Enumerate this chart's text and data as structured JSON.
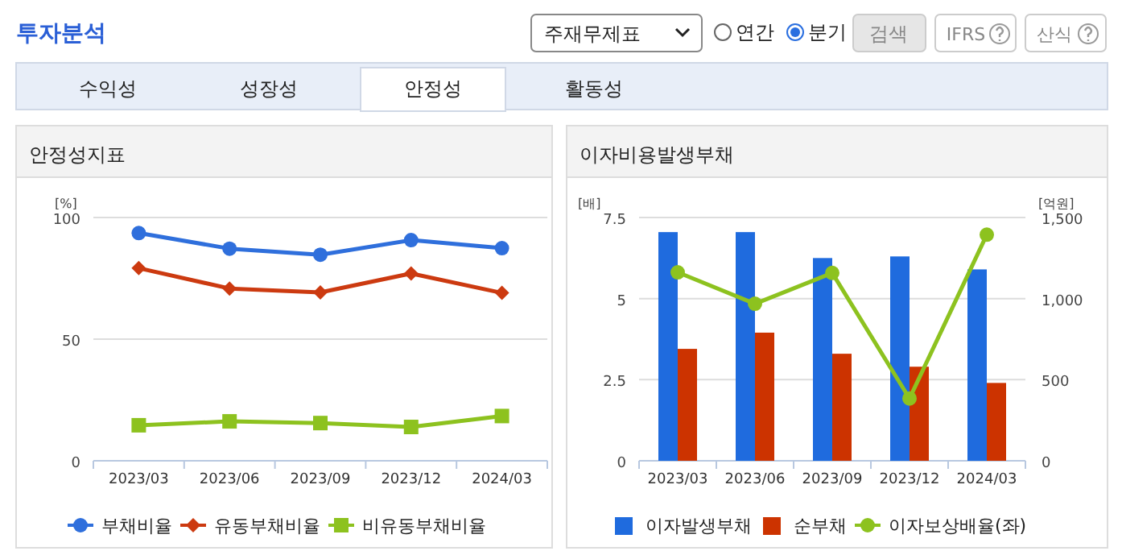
{
  "chart_data": [
    {
      "type": "line",
      "title": "안정성지표",
      "ylabel": "[%]",
      "categories": [
        "2023/03",
        "2023/06",
        "2023/09",
        "2023/12",
        "2024/03"
      ],
      "ylim": [
        0,
        100
      ],
      "yticks": [
        0,
        50,
        100
      ],
      "grid": "y",
      "legend": "bottom",
      "annotations": [
        "투자분석",
        "주재무제표",
        "연간",
        "분기",
        "검색",
        "IFRS",
        "산식",
        "수익성",
        "성장성",
        "안정성",
        "활동성"
      ],
      "series": [
        {
          "name": "부채비율",
          "color": "#2f6fdc",
          "marker": "circle",
          "values": [
            93.6,
            87.2,
            84.7,
            90.7,
            87.4
          ]
        },
        {
          "name": "유동부채비율",
          "color": "#cc3a10",
          "marker": "diamond",
          "values": [
            79.2,
            70.8,
            69.2,
            77.0,
            69.0
          ]
        },
        {
          "name": "비유동부채비율",
          "color": "#8dc21f",
          "marker": "square",
          "values": [
            14.6,
            16.2,
            15.5,
            13.9,
            18.4
          ]
        }
      ]
    },
    {
      "type": "bar",
      "title": "이자비용발생부채",
      "ylabel": "[배]",
      "y2label": "[억원]",
      "categories": [
        "2023/03",
        "2023/06",
        "2023/09",
        "2023/12",
        "2024/03"
      ],
      "ylim": [
        0,
        7.5
      ],
      "yticks": [
        0,
        2.5,
        5,
        7.5
      ],
      "y2lim": [
        0,
        1500
      ],
      "y2ticks": [
        0,
        {
          "value": 500,
          "label": "500"
        },
        {
          "value": 1000,
          "label": "1,000"
        },
        {
          "value": 1500,
          "label": "1,500"
        }
      ],
      "grid": "y",
      "legend": "bottom",
      "series": [
        {
          "name": "이자발생부채",
          "color": "#1f6bde",
          "axis": "y2",
          "values": [
            1410,
            1410,
            1250,
            1260,
            1180
          ]
        },
        {
          "name": "순부채",
          "color": "#cc3300",
          "axis": "y2",
          "values": [
            690,
            790,
            660,
            580,
            480
          ]
        },
        {
          "name": "이자보상배율(좌)",
          "type": "line",
          "color": "#8dc21f",
          "marker": "circle",
          "values": [
            5.81,
            4.84,
            5.79,
            1.92,
            6.97
          ]
        }
      ]
    }
  ]
}
